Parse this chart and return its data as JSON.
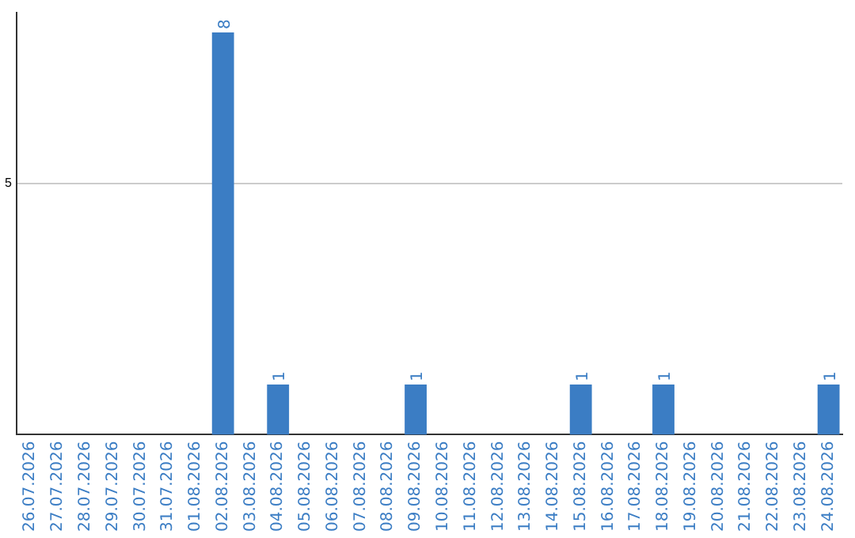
{
  "chart_data": {
    "type": "bar",
    "categories": [
      "26.07.2026",
      "27.07.2026",
      "28.07.2026",
      "29.07.2026",
      "30.07.2026",
      "31.07.2026",
      "01.08.2026",
      "02.08.2026",
      "03.08.2026",
      "04.08.2026",
      "05.08.2026",
      "06.08.2026",
      "07.08.2026",
      "08.08.2026",
      "09.08.2026",
      "10.08.2026",
      "11.08.2026",
      "12.08.2026",
      "13.08.2026",
      "14.08.2026",
      "15.08.2026",
      "16.08.2026",
      "17.08.2026",
      "18.08.2026",
      "19.08.2026",
      "20.08.2026",
      "21.08.2026",
      "22.08.2026",
      "23.08.2026",
      "24.08.2026"
    ],
    "values": [
      0,
      0,
      0,
      0,
      0,
      0,
      0,
      8,
      0,
      1,
      0,
      0,
      0,
      0,
      1,
      0,
      0,
      0,
      0,
      0,
      1,
      0,
      0,
      1,
      0,
      0,
      0,
      0,
      0,
      1
    ],
    "value_labels": [
      null,
      null,
      null,
      null,
      null,
      null,
      null,
      "8",
      null,
      "1",
      null,
      null,
      null,
      null,
      "1",
      null,
      null,
      null,
      null,
      null,
      "1",
      null,
      null,
      "1",
      null,
      null,
      null,
      null,
      null,
      "1"
    ],
    "color": "#3b7dc4",
    "ylim": [
      0,
      8.4
    ],
    "yticks": [
      5
    ],
    "grid": "y",
    "legend": false
  }
}
